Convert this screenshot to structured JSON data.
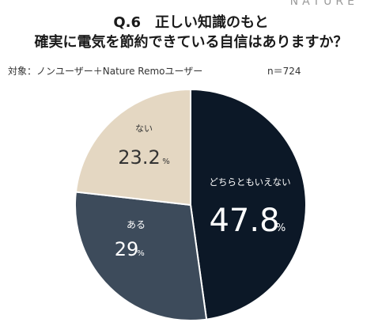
{
  "brand": "NATURE",
  "title_line1": "Q.6　正しい知識のもと",
  "title_line2": "確実に電気を節約できている自信はありますか？",
  "subject": "対象：ノンユーザー＋Nature Remoユーザー",
  "sample": "n＝724",
  "colors": {
    "neutral": "#0c1827",
    "yes": "#3d4b5b",
    "no": "#e4d7c2"
  },
  "chart_data": {
    "type": "pie",
    "unit": "%",
    "slices": [
      {
        "label": "どちらともいえない",
        "value": 47.8,
        "display": "47.8",
        "color": "#0c1827",
        "text_color": "#ffffff"
      },
      {
        "label": "ある",
        "value": 29,
        "display": "29",
        "color": "#3d4b5b",
        "text_color": "#ffffff"
      },
      {
        "label": "ない",
        "value": 23.2,
        "display": "23.2",
        "color": "#e4d7c2",
        "text_color": "#333333"
      }
    ]
  }
}
